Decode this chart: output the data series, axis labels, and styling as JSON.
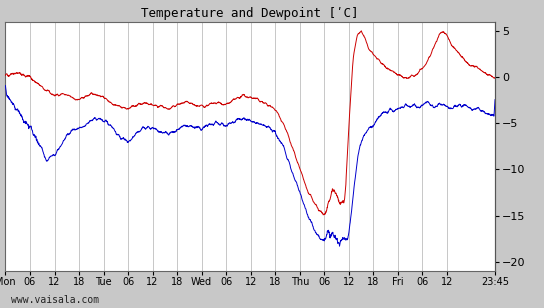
{
  "title": "Temperature and Dewpoint [ʹC]",
  "ylim": [
    -21,
    6
  ],
  "yticks": [
    5,
    0,
    -5,
    -10,
    -15,
    -20
  ],
  "bg_color": "#c8c8c8",
  "plot_bg_color": "#ffffff",
  "grid_color": "#b0b0b0",
  "temp_color": "#cc0000",
  "dew_color": "#0000cc",
  "watermark": "www.vaisala.com",
  "xtick_labels": [
    "Mon",
    "06",
    "12",
    "18",
    "Tue",
    "06",
    "12",
    "18",
    "Wed",
    "06",
    "12",
    "18",
    "Thu",
    "06",
    "12",
    "18",
    "Fri",
    "06",
    "12",
    "23:45"
  ],
  "xtick_positions": [
    0,
    6,
    12,
    18,
    24,
    30,
    36,
    42,
    48,
    54,
    60,
    66,
    72,
    78,
    84,
    90,
    96,
    102,
    108,
    119.75
  ],
  "x_total_hours": 119.75
}
